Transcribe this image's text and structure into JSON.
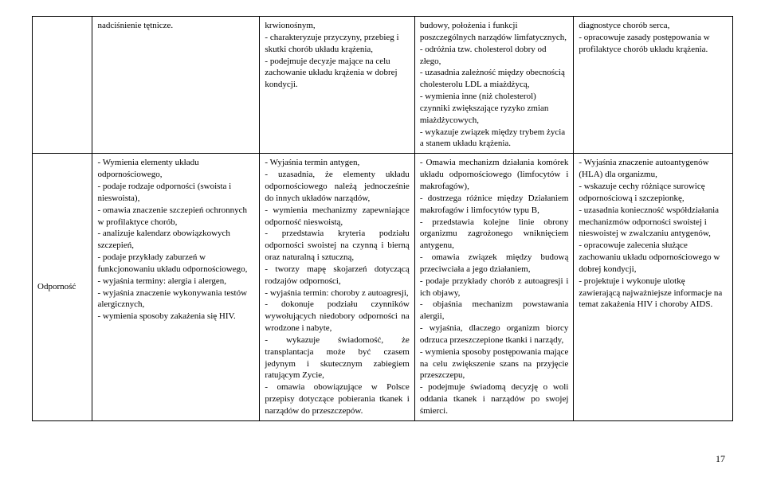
{
  "row1": {
    "label": "",
    "c1": "nadciśnienie tętnicze.",
    "c2": "krwionośnym,\n- charakteryzuje przyczyny, przebieg i skutki chorób układu krążenia,\n- podejmuje decyzje mające na celu zachowanie układu krążenia w dobrej kondycji.",
    "c3": "budowy, położenia i funkcji poszczególnych narządów limfatycznych,\n- odróżnia tzw. cholesterol dobry od złego,\n- uzasadnia zależność między obecnością cholesterolu LDL a miażdżycą,\n- wymienia inne (niż cholesterol) czynniki zwiększające ryzyko zmian miażdżycowych,\n- wykazuje związek między trybem życia a stanem układu krążenia.",
    "c4": "diagnostyce chorób serca,\n- opracowuje zasady postępowania w profilaktyce chorób układu krążenia."
  },
  "row2": {
    "label": "Odporność",
    "c1": "- Wymienia elementy układu odpornościowego,\n- podaje rodzaje odporności (swoista i nieswoista),\n- omawia znaczenie szczepień ochronnych w profilaktyce chorób,\n- analizuje kalendarz obowiązkowych szczepień,\n- podaje przykłady zaburzeń w funkcjonowaniu układu odpornościowego,\n- wyjaśnia terminy: alergia i alergen,\n- wyjaśnia znaczenie wykonywania testów alergicznych,\n- wymienia sposoby zakażenia się HIV.",
    "c2": "- Wyjaśnia termin antygen,\n- uzasadnia, że elementy układu odpornościowego należą jednocześnie do innych układów narządów,\n- wymienia mechanizmy zapewniające odporność nieswoistą,\n- przedstawia kryteria podziału odporności swoistej na czynną i bierną oraz naturalną i sztuczną,\n- tworzy mapę skojarzeń dotyczącą rodzajów odporności,\n- wyjaśnia termin: choroby z autoagresji,\n- dokonuje podziału czynników wywołujących niedobory odporności na wrodzone i nabyte,\n- wykazuje świadomość, że transplantacja może być czasem jedynym i skutecznym zabiegiem ratującym Zycie,\n- omawia obowiązujące w Polsce przepisy dotyczące pobierania tkanek i narządów do przeszczepów.",
    "c3": "- Omawia mechanizm działania komórek układu odpornościowego (limfocytów i makrofagów),\n- dostrzega różnice między Działaniem makrofagów i limfocytów typu B,\n- przedstawia kolejne linie obrony organizmu zagrożonego wniknięciem antygenu,\n- omawia związek między budową przeciwciała a jego działaniem,\n- podaje przykłady chorób z autoagresji i ich objawy,\n- objaśnia mechanizm powstawania alergii,\n- wyjaśnia, dlaczego organizm biorcy odrzuca przeszczepione tkanki i narządy,\n- wymienia sposoby postępowania mające na celu zwiększenie szans na przyjęcie przeszczepu,\n- podejmuje świadomą decyzję o woli oddania tkanek i narządów po swojej śmierci.",
    "c4": "- Wyjaśnia znaczenie autoantygenów (HLA) dla organizmu,\n- wskazuje cechy różniące surowicę odpornościową i szczepionkę,\n- uzasadnia konieczność współdziałania mechanizmów odporności swoistej i nieswoistej w zwalczaniu antygenów,\n- opracowuje zalecenia służące zachowaniu układu odpornościowego w dobrej kondycji,\n- projektuje i wykonuje ulotkę zawierającą najważniejsze informacje na temat zakażenia HIV i choroby AIDS."
  },
  "pagenum": "17"
}
